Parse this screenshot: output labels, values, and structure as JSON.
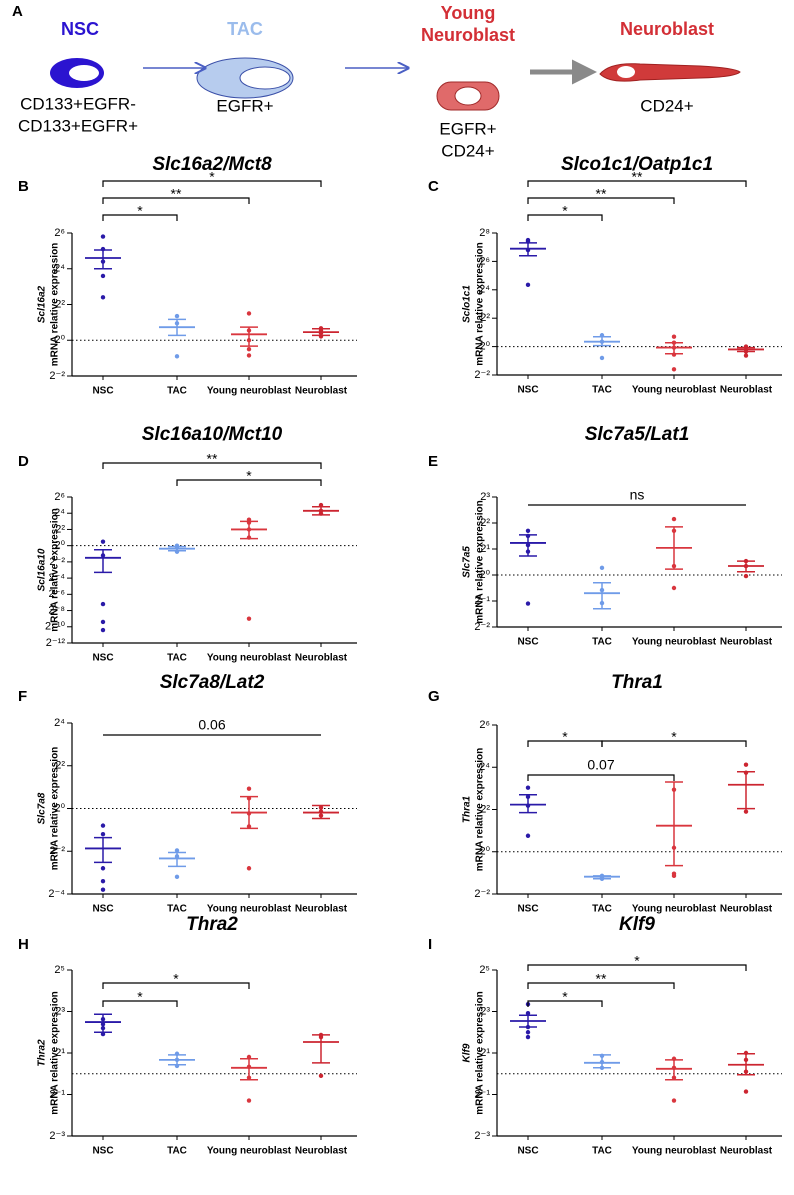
{
  "schematic": {
    "label": "A",
    "stages": [
      {
        "name": [
          "NSC"
        ],
        "color": "#2b14d0",
        "markers": [
          "CD133+EGFR-",
          "CD133+EGFR+"
        ]
      },
      {
        "name": [
          "TAC"
        ],
        "color": "#9bbcec",
        "markers": [
          "EGFR+"
        ]
      },
      {
        "name": [
          "Young",
          "Neuroblast"
        ],
        "color": "#d32f36",
        "markers": [
          "EGFR+",
          "CD24+"
        ]
      },
      {
        "name": [
          "Neuroblast"
        ],
        "color": "#d32f36",
        "markers": [
          "CD24+"
        ]
      }
    ]
  },
  "chart_data": [
    {
      "type": "scatter",
      "panel": "B",
      "title": "Slc16a2/Mct8",
      "ylabel_gene": "Scl16a2",
      "ylabel": "mRNA relative expression",
      "log_base": 2,
      "categories": [
        "NSC",
        "TAC",
        "Young neuroblast",
        "Neuroblast"
      ],
      "colors": [
        "#2a1aa8",
        "#6f9be8",
        "#d9363e",
        "#cc2530"
      ],
      "ylim": [
        0.25,
        64
      ],
      "yticks": [
        {
          "value": 0.25,
          "label": "2⁻²"
        },
        {
          "value": 1,
          "label": "2⁰"
        },
        {
          "value": 4,
          "label": "2²"
        },
        {
          "value": 16,
          "label": "2⁴"
        },
        {
          "value": 64,
          "label": "2⁶"
        }
      ],
      "reference_line": 1,
      "groups": [
        {
          "points": [
            55.7,
            34.3,
            21.1,
            12.1,
            5.28
          ],
          "mean": 24.3,
          "sem": [
            16,
            33.1
          ]
        },
        {
          "points": [
            2.55,
            1.93,
            0.536
          ],
          "mean": 1.66,
          "sem": [
            1.21,
            2.25
          ]
        },
        {
          "points": [
            2.83,
            1.46,
            1,
            0.707,
            0.555
          ],
          "mean": 1.26,
          "sem": [
            0.795,
            1.66
          ]
        },
        {
          "points": [
            1.59,
            1.46,
            1.32,
            1.16
          ],
          "mean": 1.37,
          "sem": [
            1.21,
            1.56
          ]
        }
      ],
      "brackets": [
        {
          "from": 0,
          "to": 1,
          "label": "*",
          "ticked": true
        },
        {
          "from": 0,
          "to": 2,
          "label": "**",
          "ticked": true
        },
        {
          "from": 0,
          "to": 3,
          "label": "*",
          "ticked": true
        }
      ]
    },
    {
      "type": "scatter",
      "panel": "C",
      "title": "Slco1c1/Oatp1c1",
      "ylabel_gene": "Sclo1c1",
      "ylabel": "mRNA relative expression",
      "log_base": 2,
      "categories": [
        "NSC",
        "TAC",
        "Young neuroblast",
        "Neuroblast"
      ],
      "colors": [
        "#2a1aa8",
        "#6f9be8",
        "#d9363e",
        "#cc2530"
      ],
      "ylim": [
        0.25,
        256
      ],
      "yticks": [
        {
          "value": 0.25,
          "label": "2⁻²"
        },
        {
          "value": 1,
          "label": "2⁰"
        },
        {
          "value": 4,
          "label": "2²"
        },
        {
          "value": 16,
          "label": "2⁴"
        },
        {
          "value": 64,
          "label": "2⁶"
        },
        {
          "value": 256,
          "label": "2⁸"
        }
      ],
      "reference_line": 1,
      "groups": [
        {
          "points": [
            181,
            169,
            111,
            20.4
          ],
          "mean": 119,
          "sem": [
            84.4,
            158
          ]
        },
        {
          "points": [
            1.74,
            1.27,
            0.574
          ],
          "mean": 1.27,
          "sem": [
            1.05,
            1.62
          ]
        },
        {
          "points": [
            1.62,
            1.21,
            0.953,
            0.678,
            0.33
          ],
          "mean": 0.953,
          "sem": [
            0.707,
            1.21
          ]
        },
        {
          "points": [
            1,
            0.871,
            0.785,
            0.646
          ],
          "mean": 0.871,
          "sem": [
            0.785,
            0.953
          ]
        }
      ],
      "brackets": [
        {
          "from": 0,
          "to": 1,
          "label": "*",
          "ticked": true
        },
        {
          "from": 0,
          "to": 2,
          "label": "**",
          "ticked": true
        },
        {
          "from": 0,
          "to": 3,
          "label": "**",
          "ticked": true
        }
      ]
    },
    {
      "type": "scatter",
      "panel": "D",
      "title": "Slc16a10/Mct10",
      "ylabel_gene": "Scl16a10",
      "ylabel": "mRNA relative expression",
      "log_base": 2,
      "categories": [
        "NSC",
        "TAC",
        "Young neuroblast",
        "Neuroblast"
      ],
      "colors": [
        "#2a1aa8",
        "#6f9be8",
        "#d9363e",
        "#cc2530"
      ],
      "ylim": [
        0.000244140625,
        64
      ],
      "yticks": [
        {
          "value": 0.000244140625,
          "label": "2⁻¹²"
        },
        {
          "value": 0.0009765625,
          "label": "2⁻¹⁰"
        },
        {
          "value": 0.00390625,
          "label": "2⁻⁸"
        },
        {
          "value": 0.015625,
          "label": "2⁻⁶"
        },
        {
          "value": 0.0625,
          "label": "2⁻⁴"
        },
        {
          "value": 0.25,
          "label": "2⁻²"
        },
        {
          "value": 1,
          "label": "2⁰"
        },
        {
          "value": 4,
          "label": "2²"
        },
        {
          "value": 16,
          "label": "2⁴"
        },
        {
          "value": 64,
          "label": "2⁶"
        }
      ],
      "reference_line": 1,
      "groups": [
        {
          "points": [
            1.41,
            0.435,
            0.0068,
            0.00148,
            0.00074
          ],
          "mean": 0.354,
          "sem": [
            0.102,
            0.707
          ]
        },
        {
          "points": [
            1,
            0.841,
            0.595
          ],
          "mean": 0.774,
          "sem": [
            0.651,
            0.92
          ]
        },
        {
          "points": [
            9.19,
            7.21,
            4,
            2,
            0.00195
          ],
          "mean": 4,
          "sem": [
            1.82,
            8
          ]
        },
        {
          "points": [
            32,
            19.7,
            15.5
          ],
          "mean": 19.7,
          "sem": [
            13.9,
            27.9
          ]
        }
      ],
      "brackets": [
        {
          "from": 1,
          "to": 3,
          "label": "*",
          "ticked": true
        },
        {
          "from": 0,
          "to": 3,
          "label": "**",
          "ticked": true
        }
      ]
    },
    {
      "type": "scatter",
      "panel": "E",
      "title": "Slc7a5/Lat1",
      "ylabel_gene": "Slc7a5",
      "ylabel": "mRNA relative expression",
      "log_base": 2,
      "categories": [
        "NSC",
        "TAC",
        "Young neuroblast",
        "Neuroblast"
      ],
      "colors": [
        "#2a1aa8",
        "#6f9be8",
        "#d9363e",
        "#cc2530"
      ],
      "ylim": [
        0.25,
        8
      ],
      "yticks": [
        {
          "value": 0.25,
          "label": "2⁻²"
        },
        {
          "value": 0.5,
          "label": "2⁻¹"
        },
        {
          "value": 1,
          "label": "2⁰"
        },
        {
          "value": 2,
          "label": "2¹"
        },
        {
          "value": 4,
          "label": "2²"
        },
        {
          "value": 8,
          "label": "2³"
        }
      ],
      "reference_line": 1,
      "groups": [
        {
          "points": [
            3.25,
            2.83,
            2.22,
            1.87,
            0.467
          ],
          "mean": 2.35,
          "sem": [
            1.66,
            2.91
          ]
        },
        {
          "points": [
            1.21,
            0.669,
            0.473
          ],
          "mean": 0.616,
          "sem": [
            0.406,
            0.812
          ]
        },
        {
          "points": [
            4.44,
            3.25,
            1.27,
            0.707
          ],
          "mean": 2.06,
          "sem": [
            1.17,
            3.61
          ]
        },
        {
          "points": [
            1.45,
            1.27,
            0.972
          ],
          "mean": 1.27,
          "sem": [
            1.09,
            1.45
          ]
        }
      ],
      "brackets": [
        {
          "from": 0,
          "to": 3,
          "label": "ns",
          "ticked": false
        }
      ]
    },
    {
      "type": "scatter",
      "panel": "F",
      "title": "Slc7a8/Lat2",
      "ylabel_gene": "Slc7a8",
      "ylabel": "mRNA relative expression",
      "log_base": 2,
      "categories": [
        "NSC",
        "TAC",
        "Young neuroblast",
        "Neuroblast"
      ],
      "colors": [
        "#2a1aa8",
        "#6f9be8",
        "#d9363e",
        "#cc2530"
      ],
      "ylim": [
        0.0625,
        16
      ],
      "yticks": [
        {
          "value": 0.0625,
          "label": "2⁻⁴"
        },
        {
          "value": 0.25,
          "label": "2⁻²"
        },
        {
          "value": 1,
          "label": "2⁰"
        },
        {
          "value": 4,
          "label": "2²"
        },
        {
          "value": 16,
          "label": "2⁴"
        }
      ],
      "reference_line": 1,
      "groups": [
        {
          "points": [
            0.574,
            0.435,
            0.144,
            0.0947,
            0.0718
          ],
          "mean": 0.274,
          "sem": [
            0.174,
            0.389
          ]
        },
        {
          "points": [
            0.257,
            0.212,
            0.109
          ],
          "mean": 0.198,
          "sem": [
            0.153,
            0.24
          ]
        },
        {
          "points": [
            1.9,
            1.39,
            0.853,
            0.559,
            0.144
          ],
          "mean": 0.877,
          "sem": [
            0.525,
            1.47
          ]
        },
        {
          "points": [
            1.03,
            0.908,
            0.795
          ],
          "mean": 0.877,
          "sem": [
            0.722,
            1.1
          ]
        }
      ],
      "brackets": [
        {
          "from": 0,
          "to": 3,
          "label": "0.06",
          "ticked": false
        }
      ]
    },
    {
      "type": "scatter",
      "panel": "G",
      "title": "Thra1",
      "ylabel_gene": "Thra1",
      "ylabel": "mRNA relative expression",
      "log_base": 2,
      "categories": [
        "NSC",
        "TAC",
        "Young neuroblast",
        "Neuroblast"
      ],
      "colors": [
        "#2a1aa8",
        "#6f9be8",
        "#d9363e",
        "#cc2530"
      ],
      "ylim": [
        0.25,
        64
      ],
      "yticks": [
        {
          "value": 0.25,
          "label": "2⁻²"
        },
        {
          "value": 1,
          "label": "2⁰"
        },
        {
          "value": 4,
          "label": "2²"
        },
        {
          "value": 16,
          "label": "2⁴"
        },
        {
          "value": 64,
          "label": "2⁶"
        }
      ],
      "reference_line": 1,
      "groups": [
        {
          "points": [
            8.17,
            6.06,
            4.53,
            1.69
          ],
          "mean": 4.69,
          "sem": [
            3.61,
            6.5
          ]
        },
        {
          "points": [
            0.454,
            0.426,
            0.412
          ],
          "mean": 0.441,
          "sem": [
            0.412,
            0.454
          ]
        },
        {
          "points": [
            7.67,
            1.14,
            0.486,
            0.454
          ],
          "mean": 2.35,
          "sem": [
            0.633,
            9.85
          ]
        },
        {
          "points": [
            17.4,
            13.4,
            3.73
          ],
          "mean": 9,
          "sem": [
            4.11,
            13.8
          ]
        }
      ],
      "brackets": [
        {
          "from": 0,
          "to": 2,
          "label": "0.07",
          "ticked": true
        },
        {
          "from": 0,
          "to": 1,
          "label": "*",
          "ticked": true
        },
        {
          "from": 1,
          "to": 3,
          "label": "*",
          "ticked": true
        }
      ]
    },
    {
      "type": "scatter",
      "panel": "H",
      "title": "Thra2",
      "ylabel_gene": "Thra2",
      "ylabel": "mRNA relative expression",
      "log_base": 2,
      "categories": [
        "NSC",
        "TAC",
        "Young neuroblast",
        "Neuroblast"
      ],
      "colors": [
        "#2a1aa8",
        "#6f9be8",
        "#d9363e",
        "#cc2530"
      ],
      "ylim": [
        0.125,
        32
      ],
      "yticks": [
        {
          "value": 0.125,
          "label": "2⁻³"
        },
        {
          "value": 0.5,
          "label": "2⁻¹"
        },
        {
          "value": 2,
          "label": "2¹"
        },
        {
          "value": 8,
          "label": "2³"
        },
        {
          "value": 32,
          "label": "2⁵"
        }
      ],
      "reference_line": 1,
      "groups": [
        {
          "points": [
            6.19,
            5.24,
            4.59,
            3.76
          ],
          "mean": 5.62,
          "sem": [
            4,
            7.31
          ]
        },
        {
          "points": [
            1.95,
            1.59,
            1.3
          ],
          "mean": 1.59,
          "sem": [
            1.35,
            1.88
          ]
        },
        {
          "points": [
            1.75,
            1.26,
            0.877,
            0.409
          ],
          "mean": 1.22,
          "sem": [
            0.818,
            1.65
          ]
        },
        {
          "points": [
            3.66,
            3.41,
            0.933
          ],
          "mean": 2.89,
          "sem": [
            1.44,
            3.66
          ]
        }
      ],
      "brackets": [
        {
          "from": 0,
          "to": 1,
          "label": "*",
          "ticked": true
        },
        {
          "from": 0,
          "to": 2,
          "label": "*",
          "ticked": true
        }
      ]
    },
    {
      "type": "scatter",
      "panel": "I",
      "title": "Klf9",
      "ylabel_gene": "Klf9",
      "ylabel": "mRNA relative expression",
      "log_base": 2,
      "categories": [
        "NSC",
        "TAC",
        "Young neuroblast",
        "Neuroblast"
      ],
      "colors": [
        "#2a1aa8",
        "#6f9be8",
        "#d9363e",
        "#cc2530"
      ],
      "ylim": [
        0.125,
        32
      ],
      "yticks": [
        {
          "value": 0.125,
          "label": "2⁻³"
        },
        {
          "value": 0.5,
          "label": "2⁻¹"
        },
        {
          "value": 2,
          "label": "2¹"
        },
        {
          "value": 8,
          "label": "2³"
        },
        {
          "value": 32,
          "label": "2⁵"
        }
      ],
      "reference_line": 1,
      "groups": [
        {
          "points": [
            10.2,
            7.57,
            4.76,
            4,
            3.41
          ],
          "mean": 5.82,
          "sem": [
            4.76,
            7.06
          ]
        },
        {
          "points": [
            1.82,
            1.48,
            1.22
          ],
          "mean": 1.44,
          "sem": [
            1.22,
            1.88
          ]
        },
        {
          "points": [
            1.65,
            1.22,
            0.877,
            0.409
          ],
          "mean": 1.18,
          "sem": [
            0.818,
            1.59
          ]
        },
        {
          "points": [
            2,
            1.59,
            1.07,
            0.551
          ],
          "mean": 1.35,
          "sem": [
            0.966,
            1.95
          ]
        }
      ],
      "brackets": [
        {
          "from": 0,
          "to": 1,
          "label": "*",
          "ticked": true
        },
        {
          "from": 0,
          "to": 2,
          "label": "**",
          "ticked": true
        },
        {
          "from": 0,
          "to": 3,
          "label": "*",
          "ticked": true
        }
      ]
    }
  ]
}
